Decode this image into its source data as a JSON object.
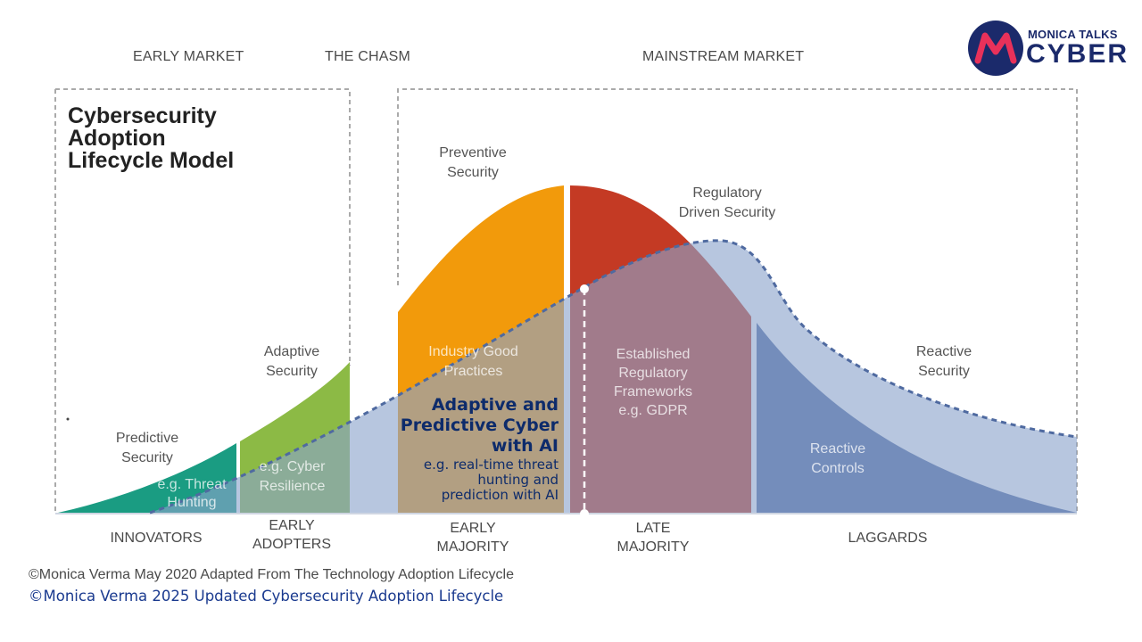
{
  "phases": {
    "early_market": "EARLY MARKET",
    "chasm": "THE CHASM",
    "mainstream": "MAINSTREAM MARKET"
  },
  "title_lines": [
    "Cybersecurity",
    "Adoption",
    "Lifecycle Model"
  ],
  "segments": {
    "innovators": "INNOVATORS",
    "early_adopters": [
      "EARLY",
      "ADOPTERS"
    ],
    "early_majority": [
      "EARLY",
      "MAJORITY"
    ],
    "late_majority": [
      "LATE",
      "MAJORITY"
    ],
    "laggards": "LAGGARDS"
  },
  "curve_labels": {
    "predictive": [
      "Predictive",
      "Security"
    ],
    "adaptive": [
      "Adaptive",
      "Security"
    ],
    "preventive": [
      "Preventive",
      "Security"
    ],
    "regulatory": [
      "Regulatory",
      "Driven Security"
    ],
    "reactive": [
      "Reactive",
      "Security"
    ]
  },
  "inner_labels": {
    "threat_hunting": [
      "e.g. Threat",
      "Hunting"
    ],
    "cyber_resilience": [
      "e.g. Cyber",
      "Resilience"
    ],
    "industry_good": [
      "Industry Good",
      "Practices"
    ],
    "established": [
      "Established",
      "Regulatory",
      "Frameworks",
      "e.g. GDPR"
    ],
    "reactive_controls": [
      "Reactive",
      "Controls"
    ]
  },
  "ai_callout": {
    "heading": [
      "Adaptive and",
      "Predictive Cyber",
      "with AI"
    ],
    "sub": [
      "e.g. real-time threat",
      "hunting and",
      "prediction with AI"
    ]
  },
  "footer": {
    "line1": "©Monica Verma May 2020 Adapted From The Technology Adoption Lifecycle",
    "line2": "©Monica Verma 2025 Updated Cybersecurity Adoption Lifecycle"
  },
  "logo": {
    "top": "MONICA TALKS",
    "bottom": "CYBER",
    "mark": "M"
  },
  "colors": {
    "innovators": "#1a9c82",
    "early_adopters": "#8cba45",
    "early_majority": "#f29a0b",
    "late_majority": "#c43a24",
    "laggards": "#4f6aa0",
    "ai_overlay": "#8ba3cc",
    "logo_dark": "#1b2a6b",
    "logo_pink": "#e8315a"
  }
}
